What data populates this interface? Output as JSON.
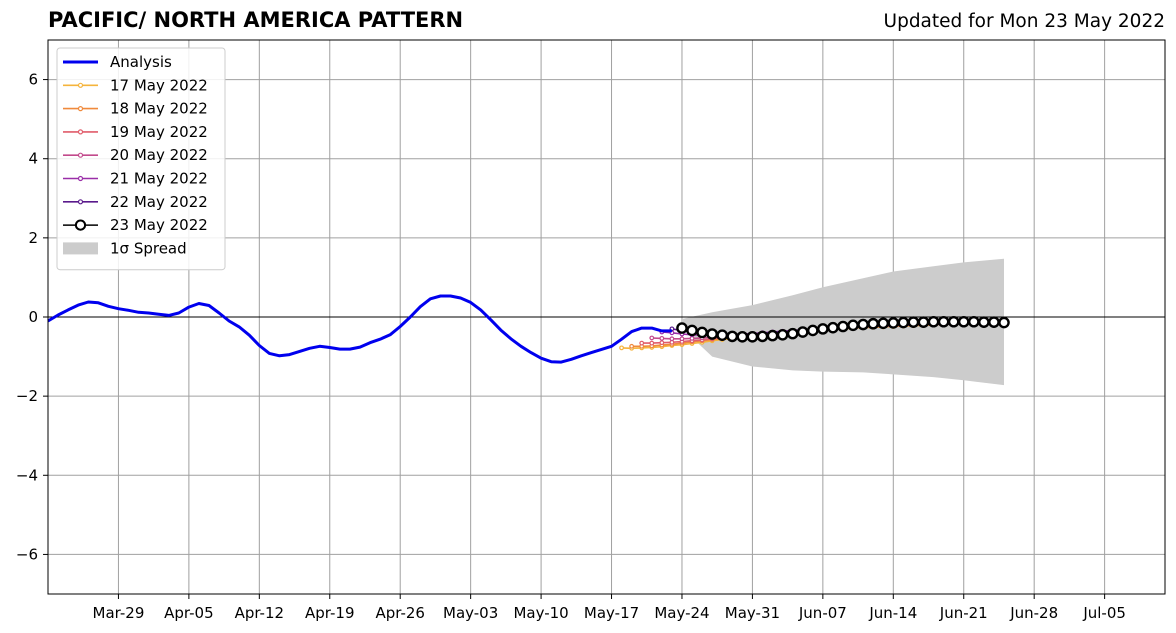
{
  "header": {
    "title": "PACIFIC/ NORTH AMERICA PATTERN",
    "updated": "Updated for Mon 23 May 2022"
  },
  "chart_data": {
    "type": "line",
    "title": "PACIFIC/ NORTH AMERICA PATTERN",
    "subtitle": "Updated for Mon 23 May 2022",
    "xlabel": "",
    "ylabel": "",
    "xlim": [
      "2022-03-22",
      "2022-07-11"
    ],
    "ylim": [
      -7,
      7
    ],
    "x_ticks": [
      {
        "date": "2022-03-29",
        "label": "Mar-29"
      },
      {
        "date": "2022-04-05",
        "label": "Apr-05"
      },
      {
        "date": "2022-04-12",
        "label": "Apr-12"
      },
      {
        "date": "2022-04-19",
        "label": "Apr-19"
      },
      {
        "date": "2022-04-26",
        "label": "Apr-26"
      },
      {
        "date": "2022-05-03",
        "label": "May-03"
      },
      {
        "date": "2022-05-10",
        "label": "May-10"
      },
      {
        "date": "2022-05-17",
        "label": "May-17"
      },
      {
        "date": "2022-05-24",
        "label": "May-24"
      },
      {
        "date": "2022-05-31",
        "label": "May-31"
      },
      {
        "date": "2022-06-07",
        "label": "Jun-07"
      },
      {
        "date": "2022-06-14",
        "label": "Jun-14"
      },
      {
        "date": "2022-06-21",
        "label": "Jun-21"
      },
      {
        "date": "2022-06-28",
        "label": "Jun-28"
      },
      {
        "date": "2022-07-05",
        "label": "Jul-05"
      }
    ],
    "y_ticks": [
      {
        "value": -6,
        "label": "−6"
      },
      {
        "value": -4,
        "label": "−4"
      },
      {
        "value": -2,
        "label": "−2"
      },
      {
        "value": 0,
        "label": "0"
      },
      {
        "value": 2,
        "label": "2"
      },
      {
        "value": 4,
        "label": "4"
      },
      {
        "value": 6,
        "label": "6"
      }
    ],
    "grid": true,
    "legend_position": "top-left",
    "series": [
      {
        "name": "Analysis",
        "color": "#0000ee",
        "kind": "analysis",
        "x": [
          "2022-03-22",
          "2022-03-23",
          "2022-03-24",
          "2022-03-25",
          "2022-03-26",
          "2022-03-27",
          "2022-03-28",
          "2022-03-29",
          "2022-03-30",
          "2022-03-31",
          "2022-04-01",
          "2022-04-02",
          "2022-04-03",
          "2022-04-04",
          "2022-04-05",
          "2022-04-06",
          "2022-04-07",
          "2022-04-08",
          "2022-04-09",
          "2022-04-10",
          "2022-04-11",
          "2022-04-12",
          "2022-04-13",
          "2022-04-14",
          "2022-04-15",
          "2022-04-16",
          "2022-04-17",
          "2022-04-18",
          "2022-04-19",
          "2022-04-20",
          "2022-04-21",
          "2022-04-22",
          "2022-04-23",
          "2022-04-24",
          "2022-04-25",
          "2022-04-26",
          "2022-04-27",
          "2022-04-28",
          "2022-04-29",
          "2022-04-30",
          "2022-05-01",
          "2022-05-02",
          "2022-05-03",
          "2022-05-04",
          "2022-05-05",
          "2022-05-06",
          "2022-05-07",
          "2022-05-08",
          "2022-05-09",
          "2022-05-10",
          "2022-05-11",
          "2022-05-12",
          "2022-05-13",
          "2022-05-14",
          "2022-05-15",
          "2022-05-16",
          "2022-05-17",
          "2022-05-18",
          "2022-05-19",
          "2022-05-20",
          "2022-05-21",
          "2022-05-22",
          "2022-05-23"
        ],
        "values": [
          -0.1,
          0.05,
          0.18,
          0.3,
          0.38,
          0.36,
          0.27,
          0.21,
          0.17,
          0.12,
          0.1,
          0.07,
          0.04,
          0.1,
          0.25,
          0.34,
          0.29,
          0.1,
          -0.1,
          -0.25,
          -0.46,
          -0.72,
          -0.92,
          -0.98,
          -0.95,
          -0.87,
          -0.79,
          -0.74,
          -0.77,
          -0.81,
          -0.81,
          -0.76,
          -0.65,
          -0.56,
          -0.45,
          -0.24,
          0.0,
          0.26,
          0.46,
          0.53,
          0.53,
          0.48,
          0.37,
          0.18,
          -0.07,
          -0.33,
          -0.55,
          -0.74,
          -0.9,
          -1.04,
          -1.13,
          -1.14,
          -1.07,
          -0.98,
          -0.9,
          -0.82,
          -0.74,
          -0.56,
          -0.37,
          -0.28,
          -0.28,
          -0.35,
          -0.35
        ]
      },
      {
        "name": "17 May 2022",
        "color": "#f5b43c",
        "kind": "forecast",
        "x": [
          "2022-05-18",
          "2022-05-19",
          "2022-05-20",
          "2022-05-21",
          "2022-05-22",
          "2022-05-23",
          "2022-05-24",
          "2022-05-25",
          "2022-05-26",
          "2022-05-27",
          "2022-05-28",
          "2022-05-29",
          "2022-05-30",
          "2022-05-31",
          "2022-06-01",
          "2022-06-02",
          "2022-06-03",
          "2022-06-04",
          "2022-06-05",
          "2022-06-06",
          "2022-06-07",
          "2022-06-08",
          "2022-06-09",
          "2022-06-10",
          "2022-06-11",
          "2022-06-12",
          "2022-06-13",
          "2022-06-14",
          "2022-06-15",
          "2022-06-16",
          "2022-06-17",
          "2022-06-18"
        ],
        "values": [
          -0.78,
          -0.79,
          -0.78,
          -0.77,
          -0.75,
          -0.72,
          -0.7,
          -0.67,
          -0.64,
          -0.6,
          -0.57,
          -0.54,
          -0.51,
          -0.48,
          -0.45,
          -0.43,
          -0.41,
          -0.39,
          -0.37,
          -0.35,
          -0.33,
          -0.31,
          -0.3,
          -0.28,
          -0.27,
          -0.26,
          -0.25,
          -0.24,
          -0.23,
          -0.22,
          -0.21,
          -0.2
        ]
      },
      {
        "name": "18 May 2022",
        "color": "#f08a3c",
        "kind": "forecast",
        "x": [
          "2022-05-19",
          "2022-05-20",
          "2022-05-21",
          "2022-05-22",
          "2022-05-23",
          "2022-05-24",
          "2022-05-25",
          "2022-05-26",
          "2022-05-27",
          "2022-05-28",
          "2022-05-29",
          "2022-05-30",
          "2022-05-31",
          "2022-06-01",
          "2022-06-02",
          "2022-06-03",
          "2022-06-04",
          "2022-06-05",
          "2022-06-06",
          "2022-06-07",
          "2022-06-08",
          "2022-06-09",
          "2022-06-10",
          "2022-06-11",
          "2022-06-12",
          "2022-06-13",
          "2022-06-14",
          "2022-06-15",
          "2022-06-16",
          "2022-06-17",
          "2022-06-18",
          "2022-06-19"
        ],
        "values": [
          -0.74,
          -0.74,
          -0.73,
          -0.71,
          -0.69,
          -0.66,
          -0.63,
          -0.6,
          -0.57,
          -0.54,
          -0.51,
          -0.48,
          -0.46,
          -0.43,
          -0.41,
          -0.39,
          -0.37,
          -0.35,
          -0.33,
          -0.31,
          -0.3,
          -0.28,
          -0.27,
          -0.26,
          -0.25,
          -0.24,
          -0.23,
          -0.22,
          -0.21,
          -0.2,
          -0.19,
          -0.19
        ]
      },
      {
        "name": "19 May 2022",
        "color": "#e05c6a",
        "kind": "forecast",
        "x": [
          "2022-05-20",
          "2022-05-21",
          "2022-05-22",
          "2022-05-23",
          "2022-05-24",
          "2022-05-25",
          "2022-05-26",
          "2022-05-27",
          "2022-05-28",
          "2022-05-29",
          "2022-05-30",
          "2022-05-31",
          "2022-06-01",
          "2022-06-02",
          "2022-06-03",
          "2022-06-04",
          "2022-06-05",
          "2022-06-06",
          "2022-06-07",
          "2022-06-08",
          "2022-06-09",
          "2022-06-10",
          "2022-06-11",
          "2022-06-12",
          "2022-06-13",
          "2022-06-14",
          "2022-06-15",
          "2022-06-16",
          "2022-06-17",
          "2022-06-18",
          "2022-06-19",
          "2022-06-20"
        ],
        "values": [
          -0.66,
          -0.66,
          -0.65,
          -0.64,
          -0.62,
          -0.6,
          -0.58,
          -0.55,
          -0.52,
          -0.5,
          -0.47,
          -0.45,
          -0.42,
          -0.4,
          -0.38,
          -0.36,
          -0.34,
          -0.32,
          -0.31,
          -0.29,
          -0.28,
          -0.27,
          -0.25,
          -0.24,
          -0.23,
          -0.22,
          -0.21,
          -0.2,
          -0.19,
          -0.19,
          -0.18,
          -0.18
        ]
      },
      {
        "name": "20 May 2022",
        "color": "#c24a8c",
        "kind": "forecast",
        "x": [
          "2022-05-21",
          "2022-05-22",
          "2022-05-23",
          "2022-05-24",
          "2022-05-25",
          "2022-05-26",
          "2022-05-27",
          "2022-05-28",
          "2022-05-29",
          "2022-05-30",
          "2022-05-31",
          "2022-06-01",
          "2022-06-02",
          "2022-06-03",
          "2022-06-04",
          "2022-06-05",
          "2022-06-06",
          "2022-06-07",
          "2022-06-08",
          "2022-06-09",
          "2022-06-10",
          "2022-06-11",
          "2022-06-12",
          "2022-06-13",
          "2022-06-14",
          "2022-06-15",
          "2022-06-16",
          "2022-06-17",
          "2022-06-18",
          "2022-06-19",
          "2022-06-20",
          "2022-06-21"
        ],
        "values": [
          -0.53,
          -0.54,
          -0.55,
          -0.55,
          -0.54,
          -0.53,
          -0.51,
          -0.49,
          -0.47,
          -0.45,
          -0.43,
          -0.41,
          -0.39,
          -0.37,
          -0.35,
          -0.33,
          -0.31,
          -0.3,
          -0.28,
          -0.27,
          -0.26,
          -0.25,
          -0.24,
          -0.23,
          -0.22,
          -0.21,
          -0.2,
          -0.19,
          -0.19,
          -0.18,
          -0.18,
          -0.17
        ]
      },
      {
        "name": "21 May 2022",
        "color": "#9a2ea8",
        "kind": "forecast",
        "x": [
          "2022-05-22",
          "2022-05-23",
          "2022-05-24",
          "2022-05-25",
          "2022-05-26",
          "2022-05-27",
          "2022-05-28",
          "2022-05-29",
          "2022-05-30",
          "2022-05-31",
          "2022-06-01",
          "2022-06-02",
          "2022-06-03",
          "2022-06-04",
          "2022-06-05",
          "2022-06-06",
          "2022-06-07",
          "2022-06-08",
          "2022-06-09",
          "2022-06-10",
          "2022-06-11",
          "2022-06-12",
          "2022-06-13",
          "2022-06-14",
          "2022-06-15",
          "2022-06-16",
          "2022-06-17",
          "2022-06-18",
          "2022-06-19",
          "2022-06-20",
          "2022-06-21",
          "2022-06-22"
        ],
        "values": [
          -0.38,
          -0.4,
          -0.43,
          -0.45,
          -0.46,
          -0.46,
          -0.45,
          -0.44,
          -0.43,
          -0.42,
          -0.4,
          -0.38,
          -0.36,
          -0.34,
          -0.32,
          -0.31,
          -0.29,
          -0.28,
          -0.27,
          -0.25,
          -0.24,
          -0.23,
          -0.22,
          -0.21,
          -0.2,
          -0.2,
          -0.19,
          -0.18,
          -0.18,
          -0.17,
          -0.17,
          -0.16
        ]
      },
      {
        "name": "22 May 2022",
        "color": "#5a1a8c",
        "kind": "forecast",
        "x": [
          "2022-05-23",
          "2022-05-24",
          "2022-05-25",
          "2022-05-26",
          "2022-05-27",
          "2022-05-28",
          "2022-05-29",
          "2022-05-30",
          "2022-05-31",
          "2022-06-01",
          "2022-06-02",
          "2022-06-03",
          "2022-06-04",
          "2022-06-05",
          "2022-06-06",
          "2022-06-07",
          "2022-06-08",
          "2022-06-09",
          "2022-06-10",
          "2022-06-11",
          "2022-06-12",
          "2022-06-13",
          "2022-06-14",
          "2022-06-15",
          "2022-06-16",
          "2022-06-17",
          "2022-06-18",
          "2022-06-19",
          "2022-06-20",
          "2022-06-21",
          "2022-06-22",
          "2022-06-23"
        ],
        "values": [
          -0.3,
          -0.34,
          -0.39,
          -0.42,
          -0.44,
          -0.45,
          -0.45,
          -0.44,
          -0.43,
          -0.41,
          -0.39,
          -0.37,
          -0.35,
          -0.33,
          -0.31,
          -0.29,
          -0.28,
          -0.26,
          -0.25,
          -0.24,
          -0.22,
          -0.21,
          -0.2,
          -0.19,
          -0.19,
          -0.18,
          -0.17,
          -0.17,
          -0.16,
          -0.16,
          -0.15,
          -0.15
        ]
      },
      {
        "name": "23 May 2022",
        "color": "#000000",
        "kind": "current",
        "x": [
          "2022-05-24",
          "2022-05-25",
          "2022-05-26",
          "2022-05-27",
          "2022-05-28",
          "2022-05-29",
          "2022-05-30",
          "2022-05-31",
          "2022-06-01",
          "2022-06-02",
          "2022-06-03",
          "2022-06-04",
          "2022-06-05",
          "2022-06-06",
          "2022-06-07",
          "2022-06-08",
          "2022-06-09",
          "2022-06-10",
          "2022-06-11",
          "2022-06-12",
          "2022-06-13",
          "2022-06-14",
          "2022-06-15",
          "2022-06-16",
          "2022-06-17",
          "2022-06-18",
          "2022-06-19",
          "2022-06-20",
          "2022-06-21",
          "2022-06-22",
          "2022-06-23",
          "2022-06-24",
          "2022-06-25"
        ],
        "values": [
          -0.28,
          -0.34,
          -0.39,
          -0.43,
          -0.46,
          -0.49,
          -0.5,
          -0.5,
          -0.49,
          -0.47,
          -0.45,
          -0.42,
          -0.38,
          -0.34,
          -0.3,
          -0.27,
          -0.24,
          -0.21,
          -0.19,
          -0.17,
          -0.16,
          -0.15,
          -0.14,
          -0.13,
          -0.13,
          -0.12,
          -0.12,
          -0.12,
          -0.12,
          -0.12,
          -0.13,
          -0.13,
          -0.14
        ]
      }
    ],
    "spread": {
      "name": "1σ Spread",
      "color": "#cccccc",
      "x": [
        "2022-05-24",
        "2022-05-27",
        "2022-05-31",
        "2022-06-04",
        "2022-06-07",
        "2022-06-11",
        "2022-06-14",
        "2022-06-18",
        "2022-06-21",
        "2022-06-25"
      ],
      "lower": [
        -0.28,
        -1.0,
        -1.25,
        -1.35,
        -1.38,
        -1.4,
        -1.45,
        -1.52,
        -1.6,
        -1.72
      ],
      "upper": [
        -0.05,
        0.12,
        0.3,
        0.55,
        0.75,
        0.98,
        1.15,
        1.28,
        1.38,
        1.47
      ]
    },
    "legend": [
      {
        "label": "Analysis",
        "color": "#0000ee",
        "style": "thick-line"
      },
      {
        "label": "17 May 2022",
        "color": "#f5b43c",
        "style": "line-marker"
      },
      {
        "label": "18 May 2022",
        "color": "#f08a3c",
        "style": "line-marker"
      },
      {
        "label": "19 May 2022",
        "color": "#e05c6a",
        "style": "line-marker"
      },
      {
        "label": "20 May 2022",
        "color": "#c24a8c",
        "style": "line-marker"
      },
      {
        "label": "21 May 2022",
        "color": "#9a2ea8",
        "style": "line-marker"
      },
      {
        "label": "22 May 2022",
        "color": "#5a1a8c",
        "style": "line-marker"
      },
      {
        "label": "23 May 2022",
        "color": "#000000",
        "style": "big-marker"
      },
      {
        "label": "1σ Spread",
        "color": "#cccccc",
        "style": "patch"
      }
    ]
  }
}
